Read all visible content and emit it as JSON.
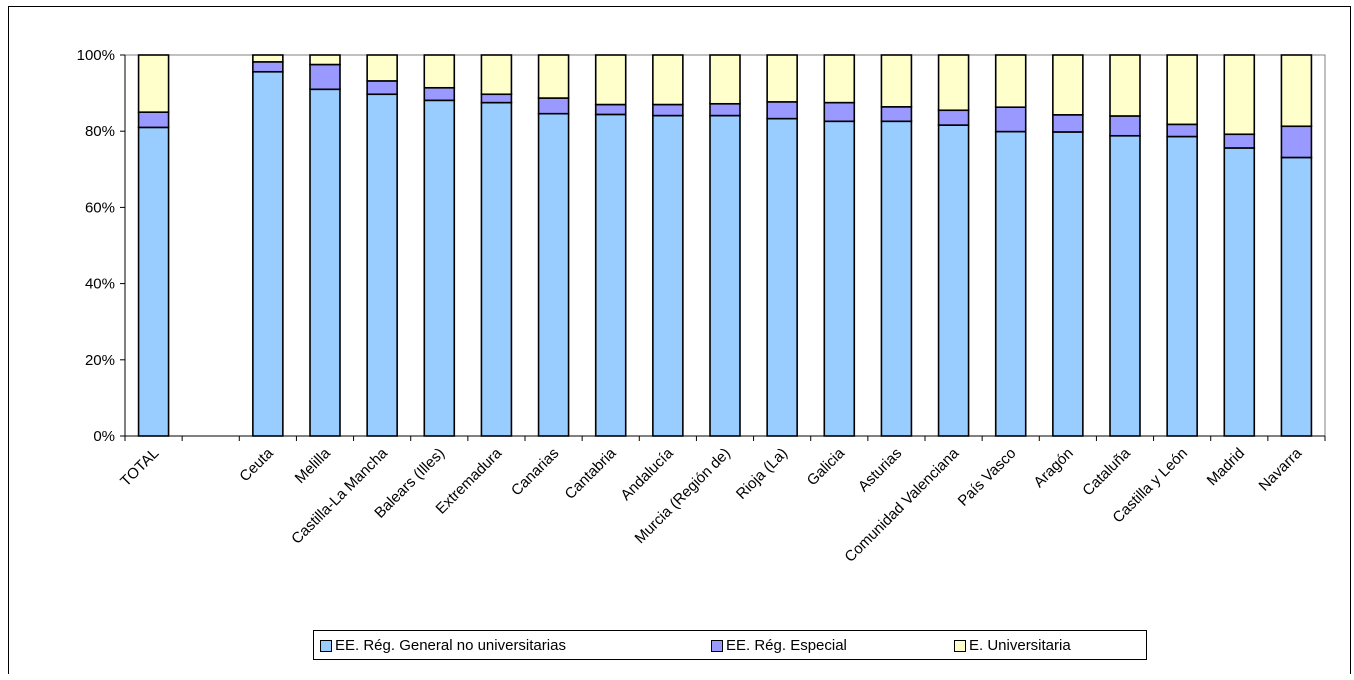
{
  "chart_data": {
    "type": "bar",
    "stacked": true,
    "percent": true,
    "categories": [
      "TOTAL",
      "",
      "Ceuta",
      "Melilla",
      "Castilla-La Mancha",
      "Balears (Illes)",
      "Extremadura",
      "Canarias",
      "Cantabria",
      "Andalucía",
      "Murcia (Región de)",
      "Rioja (La)",
      "Galicia",
      "Asturias",
      "Comunidad Valenciana",
      "País Vasco",
      "Aragón",
      "Cataluña",
      "Castilla y León",
      "Madrid",
      "Navarra"
    ],
    "series": [
      {
        "name": "EE. Rég. General no universitarias",
        "color": "#99ccff",
        "values": [
          81,
          null,
          95.6,
          91,
          89.7,
          88.1,
          87.5,
          84.6,
          84.4,
          84.1,
          84.1,
          83.3,
          82.6,
          82.6,
          81.6,
          79.9,
          79.8,
          78.8,
          78.6,
          75.6,
          73.1
        ]
      },
      {
        "name": "EE. Rég. Especial",
        "color": "#9999ff",
        "values": [
          4,
          null,
          2.6,
          6.5,
          3.5,
          3.3,
          2.2,
          4.1,
          2.6,
          2.9,
          3.1,
          4.4,
          4.9,
          3.8,
          3.9,
          6.4,
          4.5,
          5.2,
          3.2,
          3.6,
          8.2
        ]
      },
      {
        "name": "E. Universitaria",
        "color": "#ffffcc",
        "values": [
          15,
          null,
          1.8,
          2.5,
          6.8,
          8.6,
          10.3,
          11.3,
          13,
          13,
          12.8,
          12.3,
          12.5,
          13.6,
          14.5,
          13.7,
          15.7,
          16,
          18.2,
          20.8,
          18.7
        ]
      }
    ],
    "yticks": [
      "0%",
      "20%",
      "40%",
      "60%",
      "80%",
      "100%"
    ],
    "ylim": [
      0,
      100
    ],
    "legend_position": "bottom",
    "grid": false,
    "plot_background": "#ffffff"
  }
}
